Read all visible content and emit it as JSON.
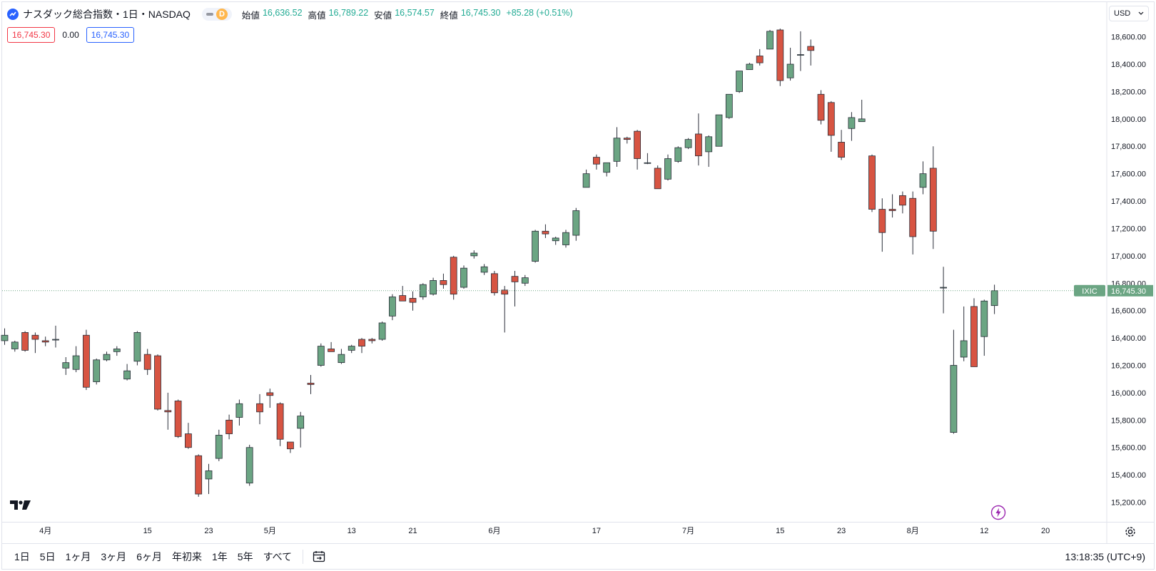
{
  "legend": {
    "symbol_title": "ナスダック総合指数・1日・NASDAQ",
    "badge_letter": "D",
    "ohlc": [
      {
        "label": "始値",
        "value": "16,636.52"
      },
      {
        "label": "高値",
        "value": "16,789.22"
      },
      {
        "label": "安値",
        "value": "16,574.57"
      },
      {
        "label": "終値",
        "value": "16,745.30"
      }
    ],
    "change": "+85.28 (+0.51%)",
    "sell_price": "16,745.30",
    "spread": "0.00",
    "buy_price": "16,745.30"
  },
  "currency": "USD",
  "bottom_bar": {
    "ranges": [
      "1日",
      "5日",
      "1ヶ月",
      "3ヶ月",
      "6ヶ月",
      "年初来",
      "1年",
      "5年",
      "すべて"
    ],
    "clock": "13:18:35 (UTC+9)"
  },
  "colors": {
    "up": "#6ba583",
    "down": "#d75442",
    "last_label_bg": "#6ba583",
    "grid": "#f0f3fa"
  },
  "chart_data": {
    "type": "candlestick",
    "symbol_label": "IXIC",
    "last_price": 16745.3,
    "last_price_label": "16,745.30",
    "ylim": [
      15100,
      18720
    ],
    "y_ticks": [
      15200,
      15400,
      15600,
      15800,
      16000,
      16200,
      16400,
      16600,
      16800,
      17000,
      17200,
      17400,
      17600,
      17800,
      18000,
      18200,
      18400,
      18600
    ],
    "x_ticks": [
      {
        "label": "4月",
        "index": 4
      },
      {
        "label": "15",
        "index": 14
      },
      {
        "label": "23",
        "index": 20
      },
      {
        "label": "5月",
        "index": 26
      },
      {
        "label": "13",
        "index": 34
      },
      {
        "label": "21",
        "index": 40
      },
      {
        "label": "6月",
        "index": 48
      },
      {
        "label": "17",
        "index": 58
      },
      {
        "label": "7月",
        "index": 67
      },
      {
        "label": "15",
        "index": 76
      },
      {
        "label": "23",
        "index": 82
      },
      {
        "label": "8月",
        "index": 89
      },
      {
        "label": "12",
        "index": 96
      },
      {
        "label": "20",
        "index": 102
      }
    ],
    "candles": [
      [
        0,
        16380,
        16470,
        16350,
        16420
      ],
      [
        1,
        16320,
        16380,
        16300,
        16370
      ],
      [
        2,
        16440,
        16450,
        16300,
        16310
      ],
      [
        3,
        16420,
        16440,
        16290,
        16390
      ],
      [
        4,
        16380,
        16410,
        16340,
        16370
      ],
      [
        5,
        16390,
        16490,
        16330,
        16390
      ],
      [
        6,
        16180,
        16260,
        16130,
        16220
      ],
      [
        7,
        16170,
        16340,
        16150,
        16270
      ],
      [
        8,
        16420,
        16460,
        16020,
        16040
      ],
      [
        9,
        16080,
        16250,
        16060,
        16240
      ],
      [
        10,
        16240,
        16300,
        16230,
        16280
      ],
      [
        11,
        16300,
        16340,
        16270,
        16320
      ],
      [
        12,
        16100,
        16210,
        16090,
        16160
      ],
      [
        13,
        16230,
        16450,
        16200,
        16440
      ],
      [
        14,
        16280,
        16320,
        16130,
        16170
      ],
      [
        15,
        16270,
        16280,
        15870,
        15880
      ],
      [
        16,
        15870,
        16000,
        15730,
        15860
      ],
      [
        17,
        15940,
        15950,
        15670,
        15680
      ],
      [
        18,
        15700,
        15780,
        15590,
        15600
      ],
      [
        19,
        15540,
        15550,
        15240,
        15260
      ],
      [
        20,
        15370,
        15480,
        15260,
        15430
      ],
      [
        21,
        15520,
        15730,
        15500,
        15690
      ],
      [
        22,
        15800,
        15840,
        15660,
        15700
      ],
      [
        23,
        15820,
        15950,
        15760,
        15920
      ],
      [
        24,
        15340,
        15620,
        15320,
        15600
      ],
      [
        25,
        15920,
        15990,
        15770,
        15860
      ],
      [
        26,
        16000,
        16030,
        15890,
        15980
      ],
      [
        27,
        15920,
        15930,
        15610,
        15660
      ],
      [
        28,
        15640,
        15640,
        15560,
        15590
      ],
      [
        29,
        15740,
        15860,
        15600,
        15830
      ],
      [
        30,
        16070,
        16130,
        15990,
        16060
      ],
      [
        31,
        16200,
        16360,
        16190,
        16340
      ],
      [
        32,
        16320,
        16370,
        16300,
        16300
      ],
      [
        33,
        16220,
        16320,
        16210,
        16280
      ],
      [
        34,
        16310,
        16350,
        16290,
        16340
      ],
      [
        35,
        16390,
        16400,
        16290,
        16340
      ],
      [
        36,
        16390,
        16400,
        16360,
        16380
      ],
      [
        37,
        16390,
        16520,
        16380,
        16510
      ],
      [
        38,
        16560,
        16720,
        16530,
        16700
      ],
      [
        39,
        16710,
        16780,
        16670,
        16670
      ],
      [
        40,
        16690,
        16740,
        16600,
        16660
      ],
      [
        41,
        16700,
        16800,
        16680,
        16790
      ],
      [
        42,
        16720,
        16840,
        16710,
        16820
      ],
      [
        43,
        16820,
        16870,
        16760,
        16790
      ],
      [
        44,
        16990,
        17000,
        16680,
        16720
      ],
      [
        45,
        16770,
        16930,
        16760,
        16910
      ],
      [
        46,
        17000,
        17040,
        16980,
        17020
      ],
      [
        47,
        16880,
        16940,
        16860,
        16920
      ],
      [
        48,
        16870,
        16890,
        16710,
        16730
      ],
      [
        49,
        16750,
        16780,
        16440,
        16720
      ],
      [
        50,
        16850,
        16890,
        16630,
        16810
      ],
      [
        51,
        16800,
        16860,
        16780,
        16840
      ],
      [
        52,
        16960,
        17190,
        16950,
        17180
      ],
      [
        53,
        17180,
        17230,
        17130,
        17160
      ],
      [
        54,
        17110,
        17140,
        17080,
        17130
      ],
      [
        55,
        17080,
        17190,
        17060,
        17170
      ],
      [
        56,
        17150,
        17350,
        17110,
        17330
      ],
      [
        57,
        17500,
        17630,
        17500,
        17600
      ],
      [
        58,
        17720,
        17740,
        17630,
        17670
      ],
      [
        59,
        17610,
        17660,
        17580,
        17680
      ],
      [
        60,
        17690,
        17940,
        17650,
        17860
      ],
      [
        61,
        17860,
        17870,
        17820,
        17850
      ],
      [
        62,
        17910,
        17920,
        17630,
        17710
      ],
      [
        63,
        17680,
        17750,
        17670,
        17680
      ],
      [
        64,
        17640,
        17660,
        17490,
        17490
      ],
      [
        65,
        17560,
        17740,
        17550,
        17710
      ],
      [
        66,
        17690,
        17800,
        17680,
        17790
      ],
      [
        67,
        17790,
        17860,
        17780,
        17850
      ],
      [
        68,
        17890,
        18040,
        17660,
        17730
      ],
      [
        69,
        17760,
        17880,
        17650,
        17870
      ],
      [
        70,
        17800,
        18030,
        17800,
        18030
      ],
      [
        71,
        18010,
        18180,
        18000,
        18180
      ],
      [
        72,
        18200,
        18350,
        18190,
        18350
      ],
      [
        73,
        18360,
        18410,
        18360,
        18400
      ],
      [
        74,
        18460,
        18510,
        18390,
        18410
      ],
      [
        75,
        18510,
        18650,
        18510,
        18640
      ],
      [
        76,
        18650,
        18660,
        18240,
        18280
      ],
      [
        77,
        18300,
        18520,
        18280,
        18400
      ],
      [
        78,
        18470,
        18640,
        18350,
        18470
      ],
      [
        79,
        18530,
        18580,
        18390,
        18500
      ],
      [
        80,
        18180,
        18210,
        17960,
        17990
      ],
      [
        81,
        18120,
        18130,
        17760,
        17880
      ],
      [
        82,
        17830,
        17920,
        17700,
        17720
      ],
      [
        83,
        17930,
        18050,
        17840,
        18010
      ],
      [
        84,
        17980,
        18140,
        17990,
        18000
      ],
      [
        85,
        17730,
        17740,
        17320,
        17340
      ],
      [
        86,
        17340,
        17420,
        17030,
        17170
      ],
      [
        87,
        17340,
        17450,
        17280,
        17330
      ],
      [
        88,
        17440,
        17470,
        17310,
        17370
      ],
      [
        89,
        17420,
        17470,
        17010,
        17140
      ],
      [
        90,
        17500,
        17690,
        17450,
        17600
      ],
      [
        91,
        17640,
        17800,
        17050,
        17180
      ],
      [
        92,
        16770,
        16920,
        16580,
        16770
      ],
      [
        93,
        15710,
        16460,
        15700,
        16200
      ],
      [
        94,
        16260,
        16630,
        16230,
        16380
      ],
      [
        95,
        16630,
        16690,
        16190,
        16190
      ],
      [
        96,
        16410,
        16680,
        16270,
        16670
      ],
      [
        97,
        16636.52,
        16789.22,
        16574.57,
        16745.3
      ]
    ]
  }
}
